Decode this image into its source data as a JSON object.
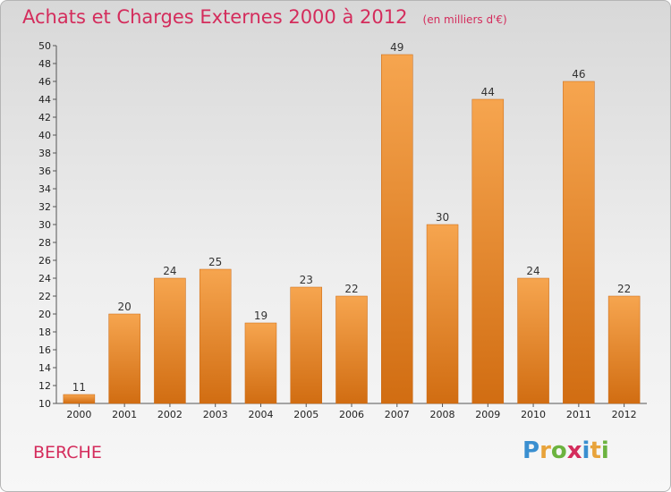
{
  "header": {
    "title": "Achats et Charges Externes 2000 à 2012",
    "unit": "(en milliers d'€)"
  },
  "commune": "BERCHE",
  "logo": {
    "letters": [
      {
        "ch": "P",
        "color": "#3a8fd0"
      },
      {
        "ch": "r",
        "color": "#e8a33a"
      },
      {
        "ch": "o",
        "color": "#6cb33f"
      },
      {
        "ch": "x",
        "color": "#d42c5c"
      },
      {
        "ch": "i",
        "color": "#3a8fd0"
      },
      {
        "ch": "t",
        "color": "#e8a33a"
      },
      {
        "ch": "i",
        "color": "#6cb33f"
      }
    ]
  },
  "chart_data": {
    "type": "bar",
    "title": "Achats et Charges Externes 2000 à 2012",
    "categories": [
      "2000",
      "2001",
      "2002",
      "2003",
      "2004",
      "2005",
      "2006",
      "2007",
      "2008",
      "2009",
      "2010",
      "2011",
      "2012"
    ],
    "values": [
      11,
      20,
      24,
      25,
      19,
      23,
      22,
      49,
      30,
      44,
      24,
      46,
      22
    ],
    "ylim": [
      10,
      50
    ],
    "yticks": [
      10,
      12,
      14,
      16,
      18,
      20,
      22,
      24,
      26,
      28,
      30,
      32,
      34,
      36,
      38,
      40,
      42,
      44,
      46,
      48,
      50
    ],
    "grid": false,
    "bar_color_top": "#f6a54f",
    "bar_color_bottom": "#d16d12"
  }
}
